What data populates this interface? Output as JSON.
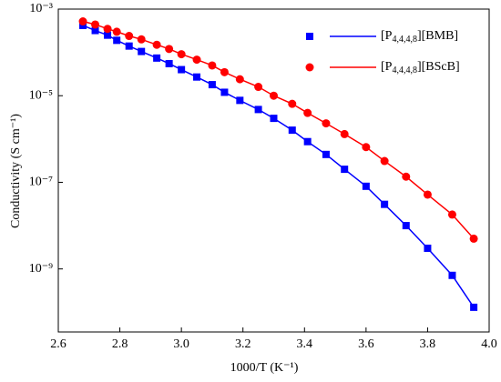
{
  "chart_data": {
    "type": "line",
    "x_label": "1000/T (K⁻¹)",
    "y_label": "Conductivity (S cm⁻¹)",
    "x": [
      2.68,
      2.72,
      2.76,
      2.79,
      2.83,
      2.87,
      2.92,
      2.96,
      3.0,
      3.05,
      3.1,
      3.14,
      3.19,
      3.25,
      3.3,
      3.36,
      3.41,
      3.47,
      3.53,
      3.6,
      3.66,
      3.73,
      3.8,
      3.88,
      3.95
    ],
    "series": [
      {
        "name": "[P4,4,4,8][BMB]",
        "color": "#0000ff",
        "marker": "square",
        "values": [
          0.00042,
          0.00032,
          0.00025,
          0.00019,
          0.00014,
          0.000105,
          7.4e-05,
          5.5e-05,
          4e-05,
          2.7e-05,
          1.8e-05,
          1.2e-05,
          7.8e-06,
          4.8e-06,
          3e-06,
          1.6e-06,
          8.7e-07,
          4.4e-07,
          2e-07,
          8.1e-08,
          3.1e-08,
          1e-08,
          3e-09,
          7.1e-10,
          1.3e-10
        ]
      },
      {
        "name": "[P4,4,4,8][BScB]",
        "color": "#ff0000",
        "marker": "circle",
        "values": [
          0.00052,
          0.00044,
          0.00035,
          0.0003,
          0.00024,
          0.0002,
          0.00015,
          0.00012,
          9.1e-05,
          6.8e-05,
          5e-05,
          3.5e-05,
          2.4e-05,
          1.6e-05,
          1e-05,
          6.5e-06,
          4e-06,
          2.3e-06,
          1.3e-06,
          6.5e-07,
          3.1e-07,
          1.35e-07,
          5.2e-08,
          1.8e-08,
          5e-09
        ]
      }
    ],
    "xlim": [
      2.6,
      4.0
    ],
    "xticks": [
      {
        "value": 2.6,
        "label": "2.6"
      },
      {
        "value": 2.8,
        "label": "2.8"
      },
      {
        "value": 3.0,
        "label": "3.0"
      },
      {
        "value": 3.2,
        "label": "3.2"
      },
      {
        "value": 3.4,
        "label": "3.4"
      },
      {
        "value": 3.6,
        "label": "3.6"
      },
      {
        "value": 3.8,
        "label": "3.8"
      },
      {
        "value": 4.0,
        "label": "4.0"
      }
    ],
    "ylim": [
      3.5e-11,
      0.001
    ],
    "yticks": [
      {
        "value": 1e-09,
        "label": "10⁻⁹"
      },
      {
        "value": 1e-07,
        "label": "10⁻⁷"
      },
      {
        "value": 1e-05,
        "label": "10⁻⁵"
      },
      {
        "value": 0.001,
        "label": "10⁻³"
      }
    ],
    "y_scale": "log",
    "grid": false,
    "legend": "upper right"
  }
}
